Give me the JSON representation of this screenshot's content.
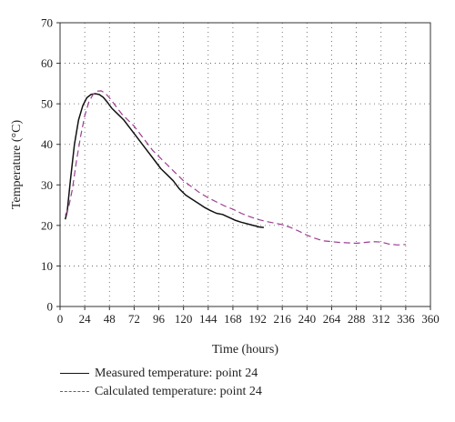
{
  "chart_data": {
    "type": "line",
    "xlabel": "Time (hours)",
    "ylabel": "Temperature (°C)",
    "xlim": [
      0,
      360
    ],
    "ylim": [
      0,
      70
    ],
    "xticks": [
      0,
      24,
      48,
      72,
      96,
      120,
      144,
      168,
      192,
      216,
      240,
      264,
      288,
      312,
      336,
      360
    ],
    "yticks": [
      0,
      10,
      20,
      30,
      40,
      50,
      60,
      70
    ],
    "grid": "dotted",
    "legend_position": "bottom",
    "series": [
      {
        "name": "Measured temperature: point 24",
        "style": "solid",
        "color": "#111111",
        "x": [
          5,
          7,
          10,
          14,
          18,
          22,
          26,
          30,
          34,
          38,
          42,
          46,
          50,
          56,
          62,
          68,
          74,
          80,
          86,
          92,
          98,
          104,
          110,
          116,
          122,
          128,
          134,
          140,
          146,
          152,
          158,
          164,
          170,
          176,
          182,
          188,
          194,
          198
        ],
        "y": [
          21.5,
          23.5,
          31,
          40,
          46,
          49.5,
          51.5,
          52.3,
          52.5,
          52.3,
          51.6,
          50.4,
          49,
          47.5,
          46,
          44,
          42,
          40,
          38,
          36,
          34,
          32.5,
          31,
          29,
          27.5,
          26.5,
          25.5,
          24.5,
          23.7,
          23,
          22.7,
          22,
          21.3,
          20.8,
          20.4,
          20,
          19.6,
          19.5
        ]
      },
      {
        "name": "Calculated temperature: point 24",
        "style": "dashed",
        "color": "#9b3d91",
        "x": [
          5,
          8,
          12,
          16,
          20,
          24,
          28,
          32,
          36,
          40,
          44,
          48,
          54,
          60,
          66,
          72,
          78,
          84,
          90,
          96,
          104,
          112,
          120,
          128,
          136,
          144,
          152,
          160,
          168,
          176,
          184,
          192,
          200,
          208,
          216,
          224,
          232,
          240,
          248,
          256,
          264,
          272,
          280,
          288,
          296,
          304,
          312,
          320,
          328,
          336
        ],
        "y": [
          22.5,
          24,
          29,
          36,
          42,
          47,
          50.5,
          52.3,
          53.1,
          53.2,
          52.6,
          51.5,
          49.5,
          47.5,
          46,
          44.5,
          42.5,
          40.5,
          38.5,
          37,
          35,
          33,
          31,
          29.5,
          28,
          26.8,
          25.8,
          24.8,
          24,
          23,
          22.2,
          21.5,
          21,
          20.6,
          20.2,
          19.5,
          18.6,
          17.6,
          16.8,
          16.2,
          16,
          15.8,
          15.7,
          15.6,
          15.8,
          16,
          15.9,
          15.4,
          15.2,
          15.3
        ]
      }
    ]
  }
}
